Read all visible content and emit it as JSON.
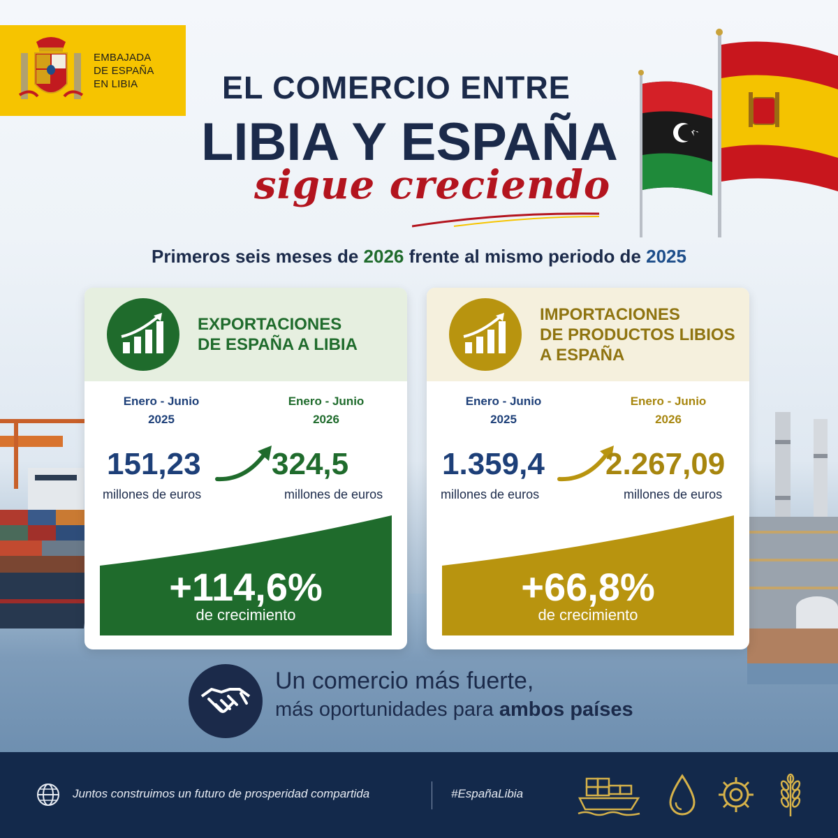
{
  "logo": {
    "line1": "EMBAJADA",
    "line2": "DE ESPAÑA",
    "line3": "EN LIBIA"
  },
  "header": {
    "title_line1": "EL COMERCIO ENTRE",
    "title_line2": "LIBIA Y ESPAÑA",
    "title_line3": "sigue creciendo"
  },
  "subtitle": {
    "part1": "Primeros seis meses de ",
    "year_new": "2026",
    "part2": " frente al mismo periodo de ",
    "year_old": "2025"
  },
  "exports": {
    "title_line1": "EXPORTACIONES",
    "title_line2": "DE ESPAÑA A LIBIA",
    "period_prev_line1": "Enero - Junio",
    "period_prev_line2": "2025",
    "period_curr_line1": "Enero - Junio",
    "period_curr_line2": "2026",
    "value_prev": "151,23",
    "value_curr": "324,5",
    "unit_prev": "millones de euros",
    "unit_curr": "millones de euros",
    "growth": "+114,6%",
    "growth_label": "de crecimiento",
    "color": "#1f6b2c"
  },
  "imports": {
    "title_line1": "IMPORTACIONES",
    "title_line2": "DE PRODUCTOS LIBIOS",
    "title_line3": "A ESPAÑA",
    "period_prev_line1": "Enero - Junio",
    "period_prev_line2": "2025",
    "period_curr_line1": "Enero - Junio",
    "period_curr_line2": "2026",
    "value_prev": "1.359,4",
    "value_curr": "2.267,09",
    "unit_prev": "millones de euros",
    "unit_curr": "millones de euros",
    "growth": "+66,8%",
    "growth_label": "de crecimiento",
    "color": "#b8940f"
  },
  "message": {
    "line1": "Un comercio más fuerte,",
    "line2_part1": "más oportunidades para ",
    "line2_bold": "ambos países"
  },
  "footer": {
    "text": "Juntos construimos un futuro de prosperidad compartida",
    "hashtag": "#EspañaLibia",
    "icons": [
      "cargo-ship-icon",
      "oil-drop-icon",
      "gear-icon",
      "wheat-icon"
    ]
  },
  "colors": {
    "navy": "#1b2a4a",
    "red": "#b3141e",
    "gold": "#f6c400",
    "footer": "#13294b"
  }
}
